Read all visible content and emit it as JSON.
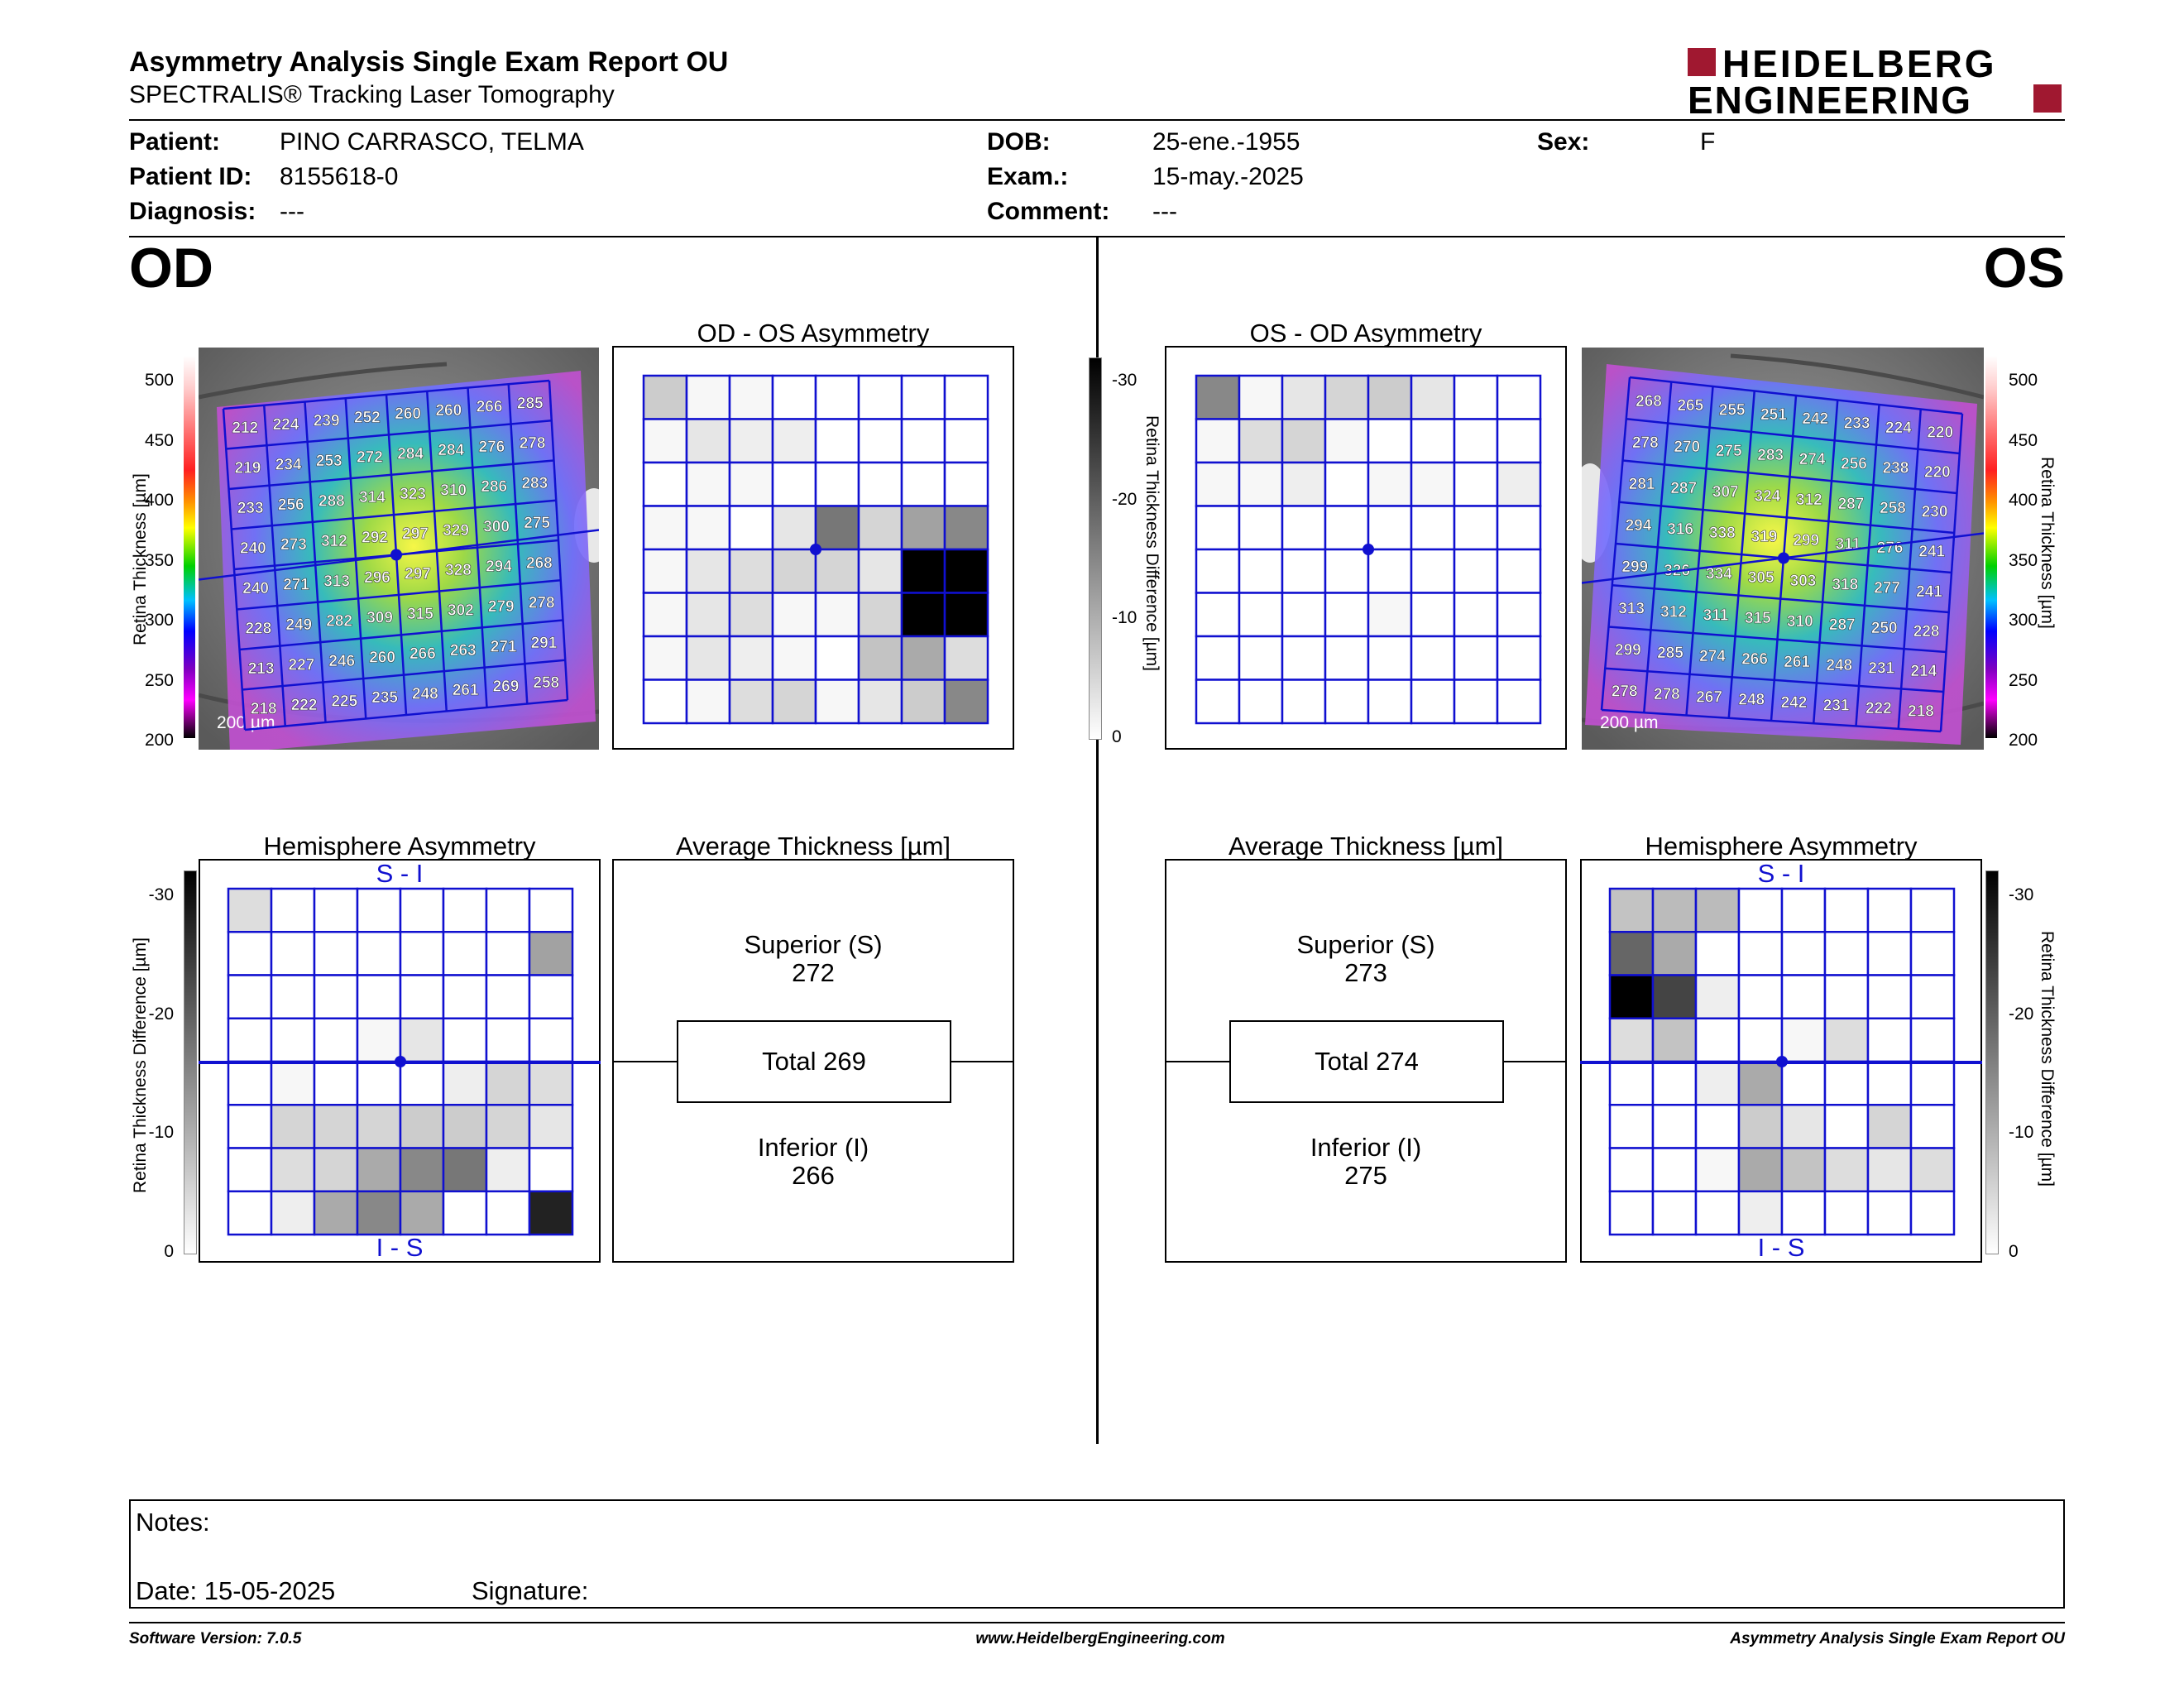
{
  "header": {
    "title": "Asymmetry Analysis Single Exam Report OU",
    "subtitle": "SPECTRALIS® Tracking Laser Tomography",
    "logo_line1": "HEIDELBERG",
    "logo_line2": "ENGINEERING"
  },
  "patient": {
    "patient_label": "Patient:",
    "patient_value": "PINO CARRASCO, TELMA",
    "id_label": "Patient ID:",
    "id_value": "8155618-0",
    "diagnosis_label": "Diagnosis:",
    "diagnosis_value": "---",
    "dob_label": "DOB:",
    "dob_value": "25-ene.-1955",
    "exam_label": "Exam.:",
    "exam_value": "15-may.-2025",
    "comment_label": "Comment:",
    "comment_value": "---",
    "sex_label": "Sex:",
    "sex_value": "F"
  },
  "od": {
    "eye": "OD",
    "asym_title": "OD - OS Asymmetry",
    "hemi_title": "Hemisphere Asymmetry",
    "hemi_top": "S - I",
    "hemi_bottom": "I - S",
    "avg_title": "Average Thickness [µm]",
    "superior_label": "Superior (S)",
    "superior_value": "272",
    "total_label": "Total 269",
    "inferior_label": "Inferior (I)",
    "inferior_value": "266",
    "scale_bar": "200 µm",
    "thickness_grid": [
      [
        212,
        224,
        239,
        252,
        260,
        260,
        266,
        285
      ],
      [
        219,
        234,
        253,
        272,
        284,
        284,
        276,
        278
      ],
      [
        233,
        256,
        288,
        314,
        323,
        310,
        286,
        283
      ],
      [
        240,
        273,
        312,
        292,
        297,
        329,
        300,
        275
      ],
      [
        240,
        271,
        313,
        296,
        297,
        328,
        294,
        268
      ],
      [
        228,
        249,
        282,
        309,
        315,
        302,
        279,
        278
      ],
      [
        213,
        227,
        246,
        260,
        266,
        263,
        271,
        291
      ],
      [
        218,
        222,
        225,
        235,
        248,
        261,
        269,
        258
      ]
    ],
    "asym_grid": [
      [
        6,
        1,
        1,
        0,
        0,
        0,
        0,
        0
      ],
      [
        1,
        3,
        2,
        2,
        0,
        0,
        0,
        0
      ],
      [
        0,
        1,
        1,
        0,
        0,
        0,
        0,
        0
      ],
      [
        1,
        1,
        0,
        3,
        16,
        5,
        11,
        14
      ],
      [
        1,
        3,
        4,
        5,
        5,
        3,
        30,
        30
      ],
      [
        1,
        3,
        4,
        1,
        1,
        5,
        30,
        30
      ],
      [
        1,
        3,
        2,
        1,
        0,
        7,
        10,
        4
      ],
      [
        0,
        1,
        4,
        5,
        1,
        3,
        6,
        14
      ]
    ],
    "hemi_grid": [
      [
        4,
        0,
        0,
        0,
        0,
        0,
        0,
        0
      ],
      [
        0,
        0,
        0,
        0,
        0,
        0,
        0,
        11
      ],
      [
        0,
        0,
        0,
        0,
        0,
        0,
        0,
        0
      ],
      [
        0,
        0,
        0,
        1,
        3,
        0,
        0,
        0
      ],
      [
        0,
        1,
        0,
        0,
        0,
        2,
        5,
        4
      ],
      [
        0,
        5,
        5,
        5,
        6,
        6,
        5,
        3
      ],
      [
        0,
        4,
        5,
        10,
        14,
        16,
        2,
        0
      ],
      [
        0,
        2,
        10,
        14,
        10,
        0,
        0,
        26
      ]
    ]
  },
  "os": {
    "eye": "OS",
    "asym_title": "OS - OD Asymmetry",
    "hemi_title": "Hemisphere Asymmetry",
    "hemi_top": "S - I",
    "hemi_bottom": "I - S",
    "avg_title": "Average Thickness [µm]",
    "superior_label": "Superior (S)",
    "superior_value": "273",
    "total_label": "Total 274",
    "inferior_label": "Inferior (I)",
    "inferior_value": "275",
    "scale_bar": "200 µm",
    "thickness_grid": [
      [
        268,
        265,
        255,
        251,
        242,
        233,
        224,
        220
      ],
      [
        278,
        270,
        275,
        283,
        274,
        256,
        238,
        220
      ],
      [
        281,
        287,
        307,
        324,
        312,
        287,
        258,
        230
      ],
      [
        294,
        316,
        338,
        319,
        299,
        311,
        276,
        241
      ],
      [
        299,
        326,
        334,
        305,
        303,
        318,
        277,
        241
      ],
      [
        313,
        312,
        311,
        315,
        310,
        287,
        250,
        228
      ],
      [
        299,
        285,
        274,
        266,
        261,
        248,
        231,
        214
      ],
      [
        278,
        278,
        267,
        248,
        242,
        231,
        222,
        218
      ]
    ],
    "asym_grid": [
      [
        14,
        1,
        3,
        5,
        6,
        3,
        0,
        0
      ],
      [
        1,
        4,
        5,
        1,
        0,
        0,
        0,
        0
      ],
      [
        1,
        1,
        2,
        0,
        1,
        1,
        0,
        2
      ],
      [
        0,
        0,
        0,
        0,
        0,
        0,
        0,
        0
      ],
      [
        0,
        0,
        0,
        0,
        0,
        0,
        0,
        0
      ],
      [
        0,
        0,
        0,
        0,
        1,
        0,
        0,
        0
      ],
      [
        0,
        0,
        0,
        0,
        0,
        0,
        0,
        0
      ],
      [
        0,
        0,
        0,
        0,
        0,
        0,
        0,
        0
      ]
    ],
    "hemi_grid": [
      [
        7,
        8,
        8,
        0,
        0,
        0,
        0,
        0
      ],
      [
        18,
        10,
        0,
        0,
        0,
        0,
        0,
        0
      ],
      [
        30,
        22,
        2,
        0,
        0,
        0,
        0,
        0
      ],
      [
        4,
        7,
        0,
        0,
        1,
        4,
        0,
        0
      ],
      [
        0,
        0,
        2,
        10,
        0,
        0,
        0,
        0
      ],
      [
        0,
        0,
        0,
        6,
        3,
        0,
        5,
        0
      ],
      [
        0,
        0,
        1,
        10,
        7,
        4,
        3,
        4
      ],
      [
        0,
        0,
        0,
        2,
        0,
        0,
        0,
        0
      ]
    ]
  },
  "scales": {
    "thickness_ticks": [
      "500",
      "450",
      "400",
      "350",
      "300",
      "250",
      "200"
    ],
    "thickness_label": "Retina Thickness [µm]",
    "diff_ticks": [
      "-30",
      "-20",
      "-10",
      "0"
    ],
    "diff_label": "Retina Thickness Difference [µm]"
  },
  "notes": {
    "notes_label": "Notes:",
    "date_label": "Date: 15-05-2025",
    "signature_label": "Signature:"
  },
  "footer": {
    "software": "Software Version: 7.0.5",
    "website": "www.HeidelbergEngineering.com",
    "report": "Asymmetry Analysis Single Exam Report OU"
  },
  "colors": {
    "grid_blue": "#1010d0",
    "logo_red": "#a01830",
    "thickness_gradient": [
      "#ffffff",
      "#ffd0d0",
      "#ff2020",
      "#ff9000",
      "#ffff00",
      "#00d000",
      "#00c0ff",
      "#0000ff",
      "#8000c0",
      "#ff00ff",
      "#000000"
    ]
  }
}
